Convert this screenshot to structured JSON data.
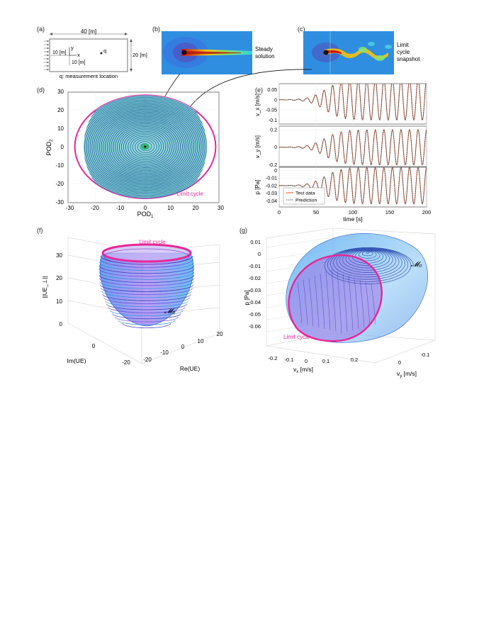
{
  "panel_labels": [
    "(a)",
    "(b)",
    "(c)",
    "(d)",
    "(e)",
    "(f)",
    "(g)"
  ],
  "a": {
    "width_label": "40 [m]",
    "height_label": "20 [m]",
    "left_label": "10 [m]",
    "below_label": "10 [m]",
    "axis_x": "x",
    "axis_y": "y",
    "q": "q",
    "caption": "q: measurement location"
  },
  "b": {
    "caption_line1": "Steady",
    "caption_line2": "solution"
  },
  "c": {
    "caption_line1": "Limit",
    "caption_line2": "cycle",
    "caption_line3": "snapshot"
  },
  "d": {
    "xlabel": "POD",
    "xlabel_sub": "1",
    "ylabel": "POD",
    "ylabel_sub": "2",
    "annotation": "Limit cycle",
    "ring_color": "#e6279a"
  },
  "e": {
    "xlabel": "time [s]",
    "legend_test": "Test data",
    "legend_pred": "Prediction",
    "test_color": "#e8663a",
    "pred_color": "#555555"
  },
  "f": {
    "zlabel": "||UE_⊥||",
    "xlabel": "Re(UE)",
    "ylabel": "Im(UE)",
    "annotation": "Limit cycle",
    "manifold": "𝓜₀"
  },
  "g": {
    "zlabel": "p [Pa]",
    "xlabel": "v",
    "xlabel_sub": "x",
    "xlabel_unit": " [m/s]",
    "ylabel": "v",
    "ylabel_sub": "y",
    "ylabel_unit": " [m/s]",
    "annotation": "Limit cycle",
    "manifold": "𝓜₀"
  },
  "chart_data": [
    {
      "type": "line",
      "panel": "d",
      "xlabel": "POD1",
      "ylabel": "POD2",
      "xlim": [
        -30,
        30
      ],
      "ylim": [
        -30,
        30
      ],
      "xticks": [
        -30,
        -20,
        -10,
        0,
        10,
        20,
        30
      ],
      "yticks": [
        -30,
        -20,
        -10,
        0,
        10,
        20,
        30
      ],
      "limit_cycle_radius": 28,
      "annotation": "Limit cycle"
    },
    {
      "type": "line",
      "panel": "e-vx",
      "ylabel": "v_x [m/s]",
      "xlim": [
        0,
        200
      ],
      "ylim": [
        -0.12,
        0.08
      ],
      "yticks": [
        0.05,
        0,
        -0.05,
        -0.1
      ],
      "mean": 0,
      "amplitude_final": 0.1,
      "period": 11.6,
      "series": [
        {
          "name": "Test data"
        },
        {
          "name": "Prediction"
        }
      ]
    },
    {
      "type": "line",
      "panel": "e-vy",
      "ylabel": "v_y [m/s]",
      "xlim": [
        0,
        200
      ],
      "ylim": [
        -0.22,
        0.24
      ],
      "yticks": [
        0.2,
        0,
        -0.2
      ],
      "mean": 0,
      "amplitude_final": 0.2,
      "period": 11.6,
      "series": [
        {
          "name": "Test data"
        },
        {
          "name": "Prediction"
        }
      ]
    },
    {
      "type": "line",
      "panel": "e-p",
      "ylabel": "p [Pa]",
      "xlabel": "time [s]",
      "xlim": [
        0,
        200
      ],
      "ylim": [
        -0.048,
        0.004
      ],
      "yticks": [
        0,
        -0.01,
        -0.02,
        -0.03,
        -0.04
      ],
      "xticks": [
        0,
        50,
        100,
        150,
        200
      ],
      "mean": -0.02,
      "amplitude_final": 0.024,
      "period": 11.6,
      "series": [
        {
          "name": "Test data"
        },
        {
          "name": "Prediction"
        }
      ]
    },
    {
      "type": "line",
      "panel": "f",
      "zlabel": "||UE_⊥||",
      "xlabel": "Re(UE)",
      "ylabel": "Im(UE)",
      "zlim": [
        0,
        30
      ],
      "zticks": [
        0,
        10,
        20,
        30
      ],
      "xticks": [
        -20,
        -10,
        0,
        10,
        20
      ],
      "yticks": [
        0,
        -20
      ],
      "annotation": "Limit cycle"
    },
    {
      "type": "line",
      "panel": "g",
      "zlabel": "p [Pa]",
      "xlabel": "v_x [m/s]",
      "ylabel": "v_y [m/s]",
      "zlim": [
        -0.06,
        0.01
      ],
      "zticks": [
        0.01,
        0,
        -0.01,
        -0.02,
        -0.03,
        -0.04,
        -0.05,
        -0.06
      ],
      "xticks": [
        -0.2,
        -0.1,
        0,
        0.1,
        0.2
      ],
      "yticks": [
        0,
        -0.1
      ],
      "annotation": "Limit cycle"
    }
  ]
}
